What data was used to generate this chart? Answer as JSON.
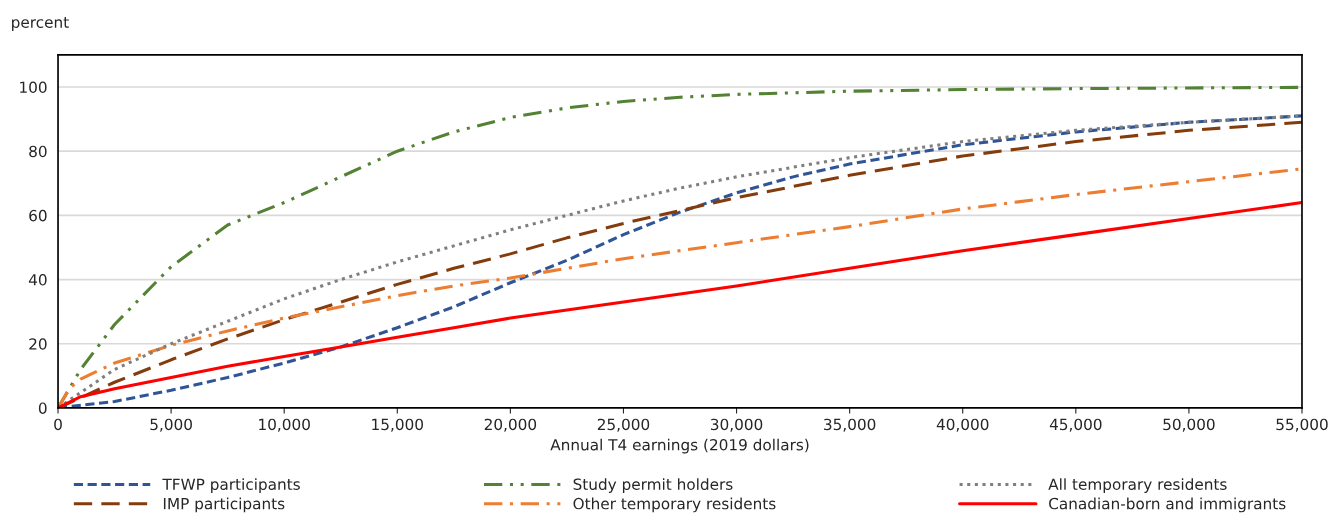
{
  "chart_data": {
    "type": "line",
    "ylabel": "percent",
    "xlabel": "Annual T4 earnings (2019 dollars)",
    "xlim": [
      0,
      55000
    ],
    "xticks": [
      0,
      {
        "value": 5000,
        "label": "5,000"
      },
      {
        "value": 10000,
        "label": "10,000"
      },
      {
        "value": 15000,
        "label": "15,000"
      },
      {
        "value": 20000,
        "label": "20,000"
      },
      {
        "value": 25000,
        "label": "25,000"
      },
      {
        "value": 30000,
        "label": "30,000"
      },
      {
        "value": 35000,
        "label": "35,000"
      },
      {
        "value": 40000,
        "label": "40,000"
      },
      {
        "value": 45000,
        "label": "45,000"
      },
      {
        "value": 50000,
        "label": "50,000"
      },
      {
        "value": 55000,
        "label": "55,000"
      }
    ],
    "ylim": [
      0,
      110
    ],
    "yticks": [
      0,
      20,
      40,
      60,
      80,
      100
    ],
    "grid": "y",
    "legend": "bottom",
    "marker": "none",
    "series": [
      {
        "name": "TFWP participants",
        "color": "#2f5597",
        "line_style": "dashed",
        "x": [
          0,
          2500,
          5000,
          7500,
          10000,
          12500,
          15000,
          17500,
          20000,
          22500,
          25000,
          27500,
          30000,
          32500,
          35000,
          40000,
          45000,
          50000,
          55000
        ],
        "values": [
          0,
          2,
          5.5,
          9.5,
          14,
          19,
          25,
          31.5,
          39,
          46,
          54,
          61,
          67,
          72,
          76,
          82,
          86,
          89,
          91
        ]
      },
      {
        "name": "IMP participants",
        "color": "#843c0c",
        "line_style": "longdash",
        "x": [
          0,
          2500,
          5000,
          7500,
          10000,
          12500,
          15000,
          17500,
          20000,
          22500,
          25000,
          27500,
          30000,
          35000,
          40000,
          45000,
          50000,
          55000
        ],
        "values": [
          0,
          8,
          15,
          21.5,
          27.5,
          33,
          38.5,
          43.5,
          48,
          53,
          57.5,
          61.5,
          65.5,
          72.5,
          78.5,
          83,
          86.5,
          89
        ]
      },
      {
        "name": "Study permit holders",
        "color": "#548235",
        "line_style": "dashdotdot",
        "x": [
          0,
          1000,
          2500,
          5000,
          7500,
          10000,
          12500,
          15000,
          17500,
          20000,
          22500,
          25000,
          27500,
          30000,
          35000,
          40000,
          45000,
          50000,
          55000
        ],
        "values": [
          0,
          12,
          26,
          44,
          57,
          64,
          72,
          80,
          86,
          90.5,
          93.5,
          95.5,
          96.8,
          97.7,
          98.7,
          99.2,
          99.5,
          99.7,
          99.9
        ]
      },
      {
        "name": "Other temporary residents",
        "color": "#ed7d31",
        "line_style": "dashdot",
        "x": [
          0,
          500,
          1000,
          2500,
          5000,
          7500,
          10000,
          12500,
          15000,
          17500,
          20000,
          22500,
          25000,
          30000,
          35000,
          40000,
          45000,
          50000,
          55000
        ],
        "values": [
          0,
          6,
          9,
          14,
          19.5,
          24,
          28,
          31.5,
          35,
          38,
          40.5,
          43.5,
          46.5,
          51.5,
          56.5,
          62,
          66.5,
          70.5,
          74.5
        ]
      },
      {
        "name": "All temporary residents",
        "color": "#7f7f7f",
        "line_style": "dotted",
        "x": [
          0,
          2500,
          5000,
          7500,
          10000,
          12500,
          15000,
          17500,
          20000,
          22500,
          25000,
          27500,
          30000,
          35000,
          40000,
          45000,
          50000,
          55000
        ],
        "values": [
          0,
          12,
          20,
          27,
          34,
          40,
          45.5,
          50.5,
          55.5,
          60,
          64.5,
          68.5,
          72,
          78,
          83,
          86.5,
          89,
          91
        ]
      },
      {
        "name": "Canadian-born and immigrants",
        "color": "#ff0000",
        "line_style": "solid",
        "x": [
          0,
          1000,
          2500,
          5000,
          7500,
          10000,
          12500,
          15000,
          17500,
          20000,
          25000,
          30000,
          35000,
          40000,
          45000,
          50000,
          55000
        ],
        "values": [
          0,
          3.5,
          6,
          9.5,
          13,
          16,
          19,
          22,
          25,
          28,
          33,
          38,
          43.5,
          49,
          54,
          59,
          64
        ]
      }
    ]
  }
}
